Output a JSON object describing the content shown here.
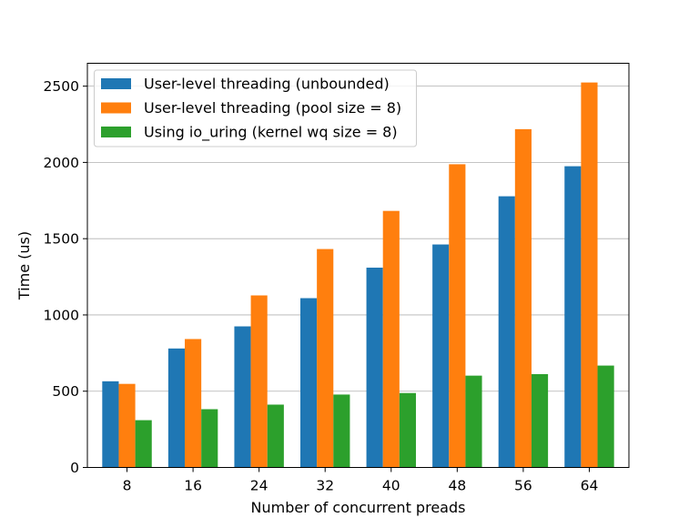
{
  "chart_data": {
    "type": "bar",
    "title": "",
    "xlabel": "Number of concurrent preads",
    "ylabel": "Time (us)",
    "categories": [
      "8",
      "16",
      "24",
      "32",
      "40",
      "48",
      "56",
      "64"
    ],
    "ylim": [
      0,
      2650
    ],
    "yticks": [
      "0",
      "500",
      "1000",
      "1500",
      "2000",
      "2500"
    ],
    "ytick_values": [
      0,
      500,
      1000,
      1500,
      2000,
      2500
    ],
    "grid": "y-major",
    "legend_position": "top-left",
    "series": [
      {
        "name": "User-level threading (unbounded)",
        "color": "#1f77b4",
        "values": [
          565,
          780,
          925,
          1110,
          1310,
          1462,
          1778,
          1975
        ]
      },
      {
        "name": "User-level threading (pool size = 8)",
        "color": "#ff7f0e",
        "values": [
          548,
          842,
          1128,
          1432,
          1682,
          1988,
          2218,
          2524
        ]
      },
      {
        "name": "Using io_uring (kernel wq size = 8)",
        "color": "#2ca02c",
        "values": [
          310,
          382,
          412,
          478,
          488,
          602,
          612,
          668
        ]
      }
    ]
  }
}
